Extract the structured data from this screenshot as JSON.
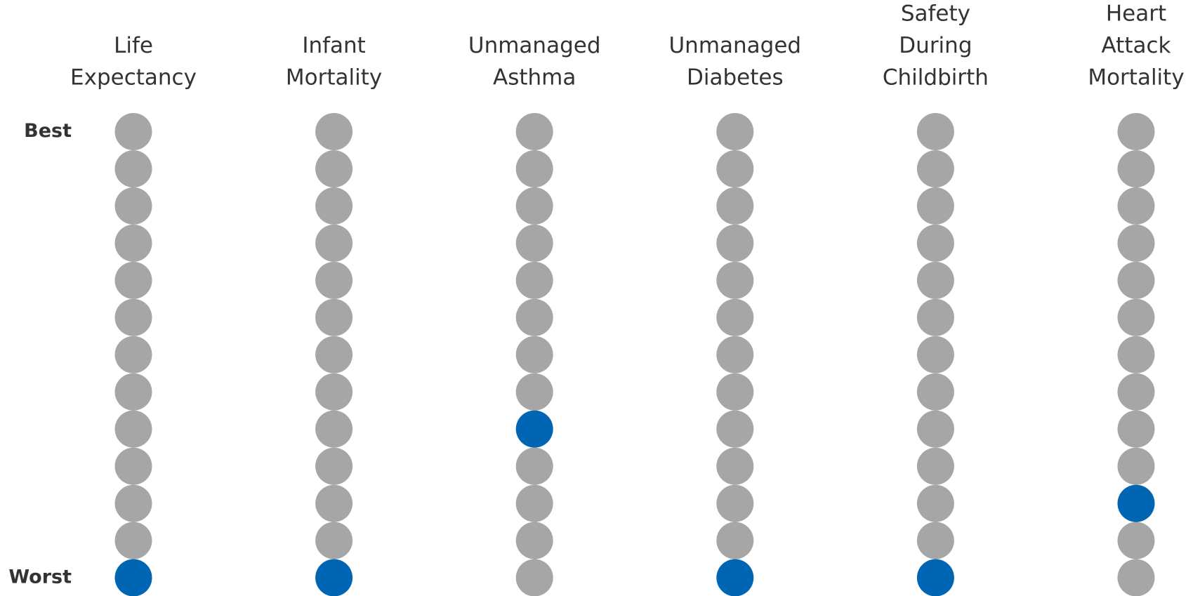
{
  "chart_data": {
    "type": "rank-dots",
    "categories": [
      [
        "Life",
        "Expectancy"
      ],
      [
        "Infant",
        "Mortality"
      ],
      [
        "Unmanaged",
        "Asthma"
      ],
      [
        "Unmanaged",
        "Diabetes"
      ],
      [
        "Safety",
        "During",
        "Childbirth"
      ],
      [
        "Heart",
        "Attack",
        "Mortality"
      ]
    ],
    "values": [
      13,
      13,
      9,
      13,
      13,
      11
    ],
    "ylim": [
      1,
      13
    ],
    "yticks": [
      {
        "value": 1,
        "label": "Best"
      },
      {
        "value": 13,
        "label": "Worst"
      }
    ],
    "color": "#0066b3",
    "base_color": "#a6a6a6"
  }
}
